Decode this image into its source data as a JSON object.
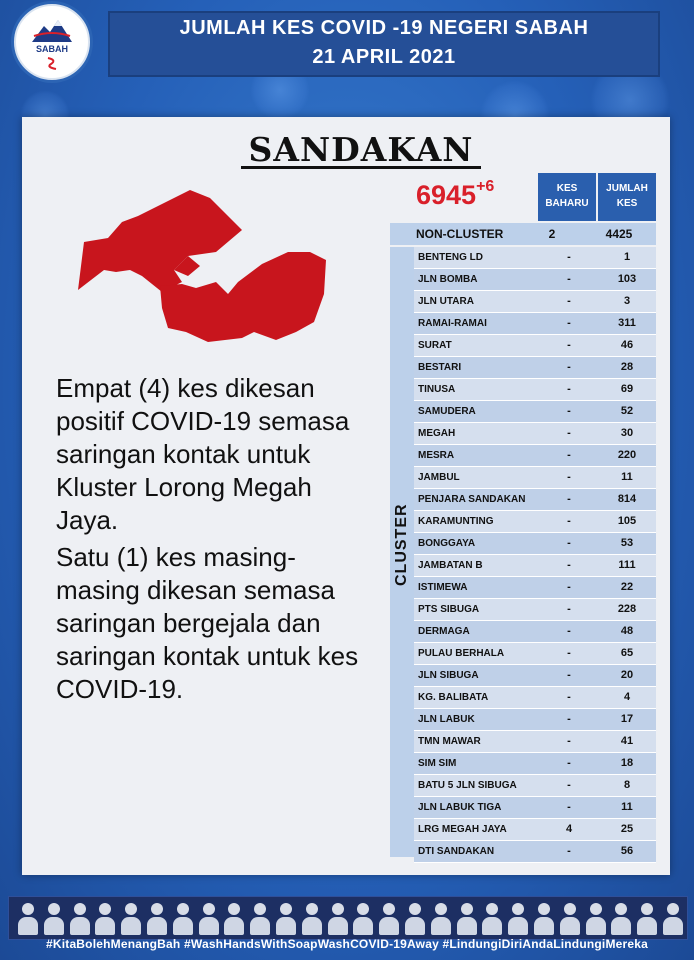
{
  "logo": {
    "label": "SABAH"
  },
  "header": {
    "line1": "JUMLAH KES COVID -19 NEGERI SABAH",
    "line2": "21 APRIL 2021"
  },
  "district": "SANDAKAN",
  "total": {
    "value": "6945",
    "increase": "+6"
  },
  "table": {
    "col_baharu": [
      "KES",
      "BAHARU"
    ],
    "col_jumlah": [
      "JUMLAH",
      "KES"
    ],
    "noncluster": {
      "name": "NON-CLUSTER",
      "baharu": "2",
      "jumlah": "4425"
    },
    "cluster_label": "CLUSTER",
    "rows": [
      {
        "name": "BENTENG LD",
        "baharu": "-",
        "jumlah": "1"
      },
      {
        "name": "JLN BOMBA",
        "baharu": "-",
        "jumlah": "103"
      },
      {
        "name": "JLN UTARA",
        "baharu": "-",
        "jumlah": "3"
      },
      {
        "name": "RAMAI-RAMAI",
        "baharu": "-",
        "jumlah": "311"
      },
      {
        "name": "SURAT",
        "baharu": "-",
        "jumlah": "46"
      },
      {
        "name": "BESTARI",
        "baharu": "-",
        "jumlah": "28"
      },
      {
        "name": "TINUSA",
        "baharu": "-",
        "jumlah": "69"
      },
      {
        "name": "SAMUDERA",
        "baharu": "-",
        "jumlah": "52"
      },
      {
        "name": "MEGAH",
        "baharu": "-",
        "jumlah": "30"
      },
      {
        "name": "MESRA",
        "baharu": "-",
        "jumlah": "220"
      },
      {
        "name": "JAMBUL",
        "baharu": "-",
        "jumlah": "11"
      },
      {
        "name": "PENJARA SANDAKAN",
        "baharu": "-",
        "jumlah": "814"
      },
      {
        "name": "KARAMUNTING",
        "baharu": "-",
        "jumlah": "105"
      },
      {
        "name": "BONGGAYA",
        "baharu": "-",
        "jumlah": "53"
      },
      {
        "name": "JAMBATAN B",
        "baharu": "-",
        "jumlah": "111"
      },
      {
        "name": "ISTIMEWA",
        "baharu": "-",
        "jumlah": "22"
      },
      {
        "name": "PTS SIBUGA",
        "baharu": "-",
        "jumlah": "228"
      },
      {
        "name": "DERMAGA",
        "baharu": "-",
        "jumlah": "48"
      },
      {
        "name": "PULAU BERHALA",
        "baharu": "-",
        "jumlah": "65"
      },
      {
        "name": "JLN SIBUGA",
        "baharu": "-",
        "jumlah": "20"
      },
      {
        "name": "KG. BALIBATA",
        "baharu": "-",
        "jumlah": "4"
      },
      {
        "name": "JLN LABUK",
        "baharu": "-",
        "jumlah": "17"
      },
      {
        "name": "TMN MAWAR",
        "baharu": "-",
        "jumlah": "41"
      },
      {
        "name": "SIM SIM",
        "baharu": "-",
        "jumlah": "18"
      },
      {
        "name": "BATU 5 JLN SIBUGA",
        "baharu": "-",
        "jumlah": "8"
      },
      {
        "name": "JLN LABUK TIGA",
        "baharu": "-",
        "jumlah": "11"
      },
      {
        "name": "LRG MEGAH JAYA",
        "baharu": "4",
        "jumlah": "25"
      },
      {
        "name": "DTI SANDAKAN",
        "baharu": "-",
        "jumlah": "56"
      }
    ]
  },
  "body": {
    "paragraph1": "Empat (4) kes dikesan positif COVID-19 semasa saringan kontak untuk Kluster Lorong Megah Jaya.",
    "paragraph2": "Satu (1) kes masing-masing dikesan semasa saringan bergejala dan saringan kontak untuk kes COVID-19."
  },
  "footer": {
    "hashtags": "#KitaBolehMenangBah #WashHandsWithSoapWashCOVID-19Away #LindungiDiriAndaLindungiMereka"
  },
  "colors": {
    "accent_red": "#d9202a",
    "table_blue": "#2a5fae",
    "header_blue": "#254f97"
  }
}
